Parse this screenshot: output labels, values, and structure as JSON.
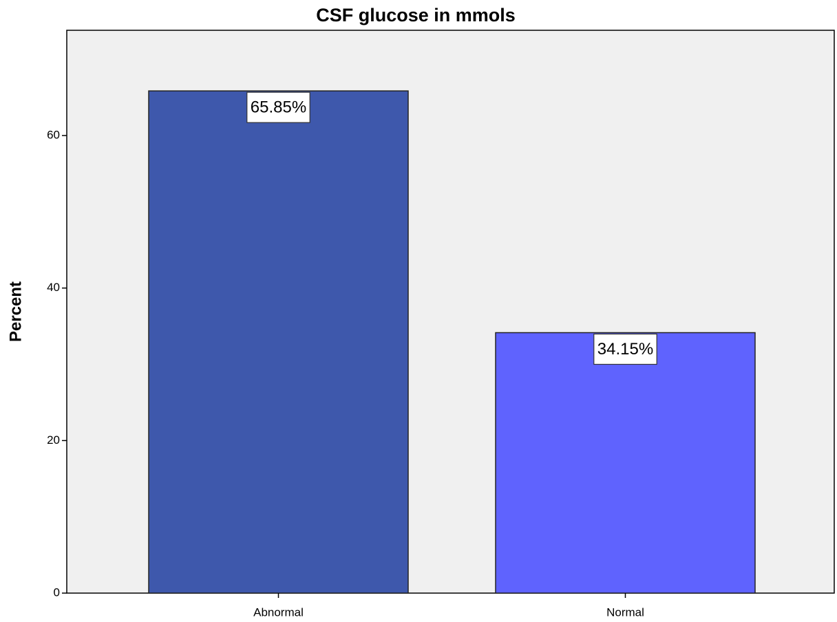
{
  "chart_data": {
    "type": "bar",
    "title": "CSF glucose in mmols",
    "y_label": "Percent",
    "categories": [
      "Abnormal",
      "Normal"
    ],
    "values": [
      65.85,
      34.15
    ],
    "value_labels": [
      "65.85%",
      "34.15%"
    ],
    "colors": [
      "#3e58ac",
      "#5f63fe"
    ],
    "ylim": [
      0,
      73.8
    ],
    "yticks": [
      0,
      20,
      40,
      60
    ],
    "grid": false
  }
}
